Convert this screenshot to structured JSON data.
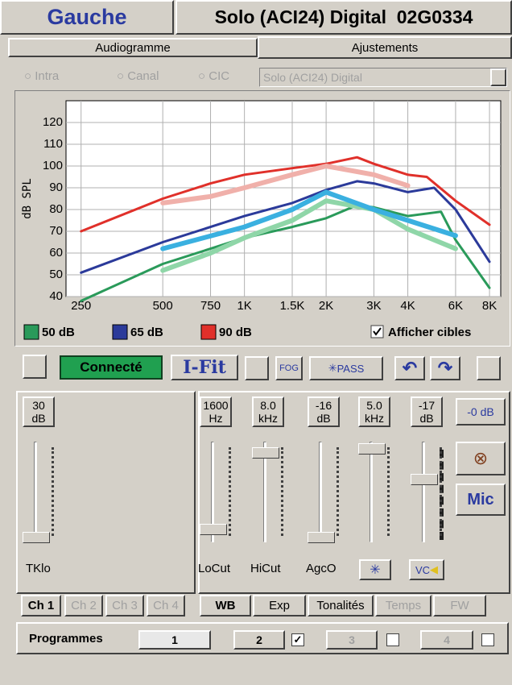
{
  "header": {
    "side": "Gauche",
    "device": "Solo (ACI24) Digital  02G0334"
  },
  "tabs": [
    "Audiogramme",
    "Ajustements"
  ],
  "style_options": [
    "Intra",
    "Canal",
    "CIC"
  ],
  "model_select": "Solo (ACI24) Digital",
  "chart_data": {
    "type": "line",
    "y_label": "dB SPL",
    "x_scale": "log",
    "grid": true,
    "xlim": [
      220,
      8800
    ],
    "ylim": [
      40,
      130
    ],
    "xticks": [
      250,
      500,
      750,
      {
        "value": 1000,
        "label": "1K"
      },
      {
        "value": 1500,
        "label": "1.5K"
      },
      {
        "value": 2000,
        "label": "2K"
      },
      {
        "value": 3000,
        "label": "3K"
      },
      {
        "value": 4000,
        "label": "4K"
      },
      {
        "value": 6000,
        "label": "6K"
      },
      {
        "value": 8000,
        "label": "8K"
      }
    ],
    "yticks": [
      40,
      50,
      60,
      70,
      80,
      90,
      100,
      110,
      120
    ],
    "series": [
      {
        "name": "50 dB",
        "color": "#2a9a5a",
        "x": [
          250,
          500,
          750,
          1000,
          1500,
          2000,
          2600,
          3000,
          4000,
          5300,
          6000,
          8000
        ],
        "values": [
          38,
          55,
          62,
          67,
          72,
          76,
          82,
          81,
          77,
          79,
          66,
          44
        ]
      },
      {
        "name": "65 dB",
        "color": "#2b3a9a",
        "x": [
          250,
          500,
          750,
          1000,
          1500,
          2000,
          2600,
          3000,
          4000,
          5000,
          6000,
          8000
        ],
        "values": [
          51,
          65,
          72,
          77,
          83,
          89,
          93,
          92,
          88,
          90,
          80,
          56
        ]
      },
      {
        "name": "90 dB",
        "color": "#e0302a",
        "x": [
          250,
          500,
          750,
          1000,
          1500,
          2000,
          2600,
          3000,
          4000,
          4700,
          6000,
          8000
        ],
        "values": [
          70,
          85,
          92,
          96,
          99,
          101,
          104,
          101,
          96,
          95,
          84,
          73
        ]
      },
      {
        "color": "#f0b0aa",
        "x": [
          500,
          750,
          1000,
          1500,
          2000,
          3000,
          4000
        ],
        "values": [
          83,
          86,
          90,
          96,
          100,
          96,
          91
        ]
      },
      {
        "color": "#8fd6a8",
        "x": [
          500,
          750,
          1000,
          1500,
          2000,
          3000,
          4000,
          6000
        ],
        "values": [
          52,
          60,
          67,
          75,
          84,
          80,
          71,
          62
        ]
      },
      {
        "color": "#3ab0e0",
        "x": [
          500,
          1000,
          1500,
          2000,
          3000,
          4000,
          6000
        ],
        "values": [
          62,
          72,
          80,
          88,
          80,
          75,
          68
        ]
      }
    ]
  },
  "legend_toggle": "Afficher cibles",
  "toolbar": {
    "status": "Connecté",
    "ifit": "I-Fit",
    "fog": "FOG",
    "pass": "PASS"
  },
  "channel_panel": {
    "value": "30",
    "unit": "dB",
    "label": "TKlo"
  },
  "wb_controls": [
    {
      "value": "1600",
      "unit": "Hz",
      "label": "LoCut"
    },
    {
      "value": "8.0",
      "unit": "kHz",
      "label": "HiCut"
    },
    {
      "value": "-16",
      "unit": "dB",
      "label": "AgcO"
    },
    {
      "value": "5.0",
      "unit": "kHz"
    },
    {
      "value": "-17",
      "unit": "dB"
    }
  ],
  "volume_button": "-0 dB",
  "mic": "Mic",
  "vc": "VC",
  "channel_tabs": [
    "Ch 1",
    "Ch 2",
    "Ch 3",
    "Ch 4"
  ],
  "group_tabs": [
    "WB",
    "Exp",
    "Tonalités",
    "Temps",
    "FW"
  ],
  "programmes": {
    "label": "Programmes",
    "items": [
      "1",
      "2",
      "3",
      "4"
    ]
  }
}
